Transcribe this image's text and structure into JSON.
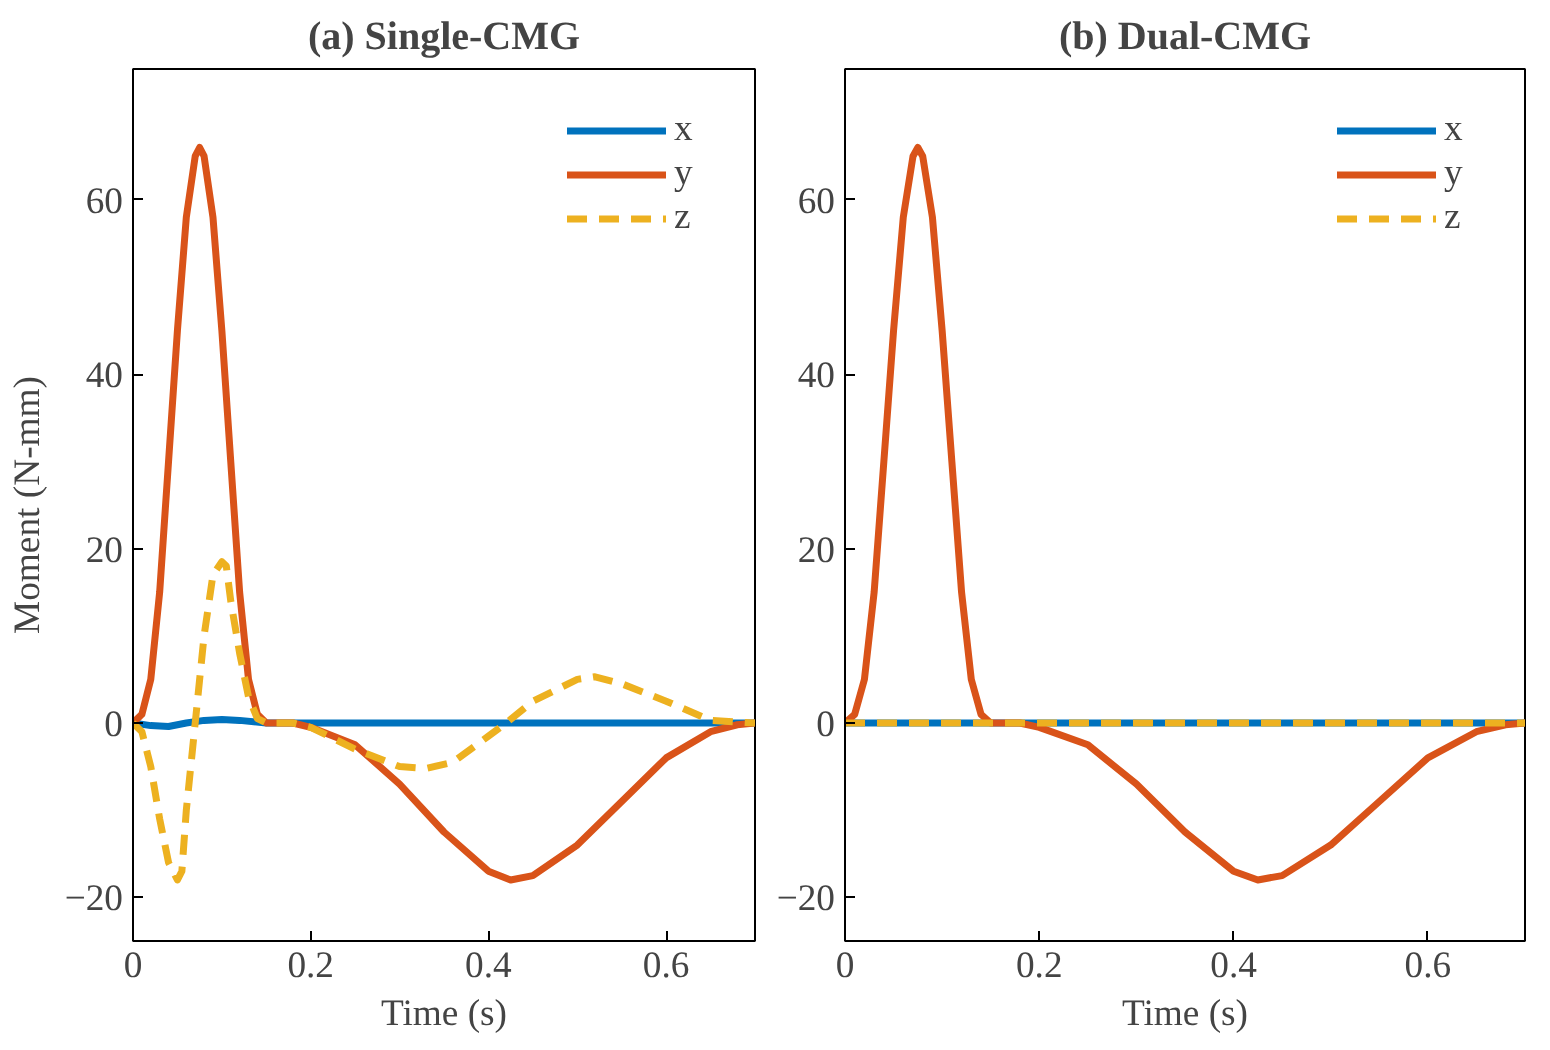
{
  "chart_data": [
    {
      "type": "line",
      "title": "(a) Single-CMG",
      "xlabel": "Time (s)",
      "ylabel": "Moment (N-mm)",
      "xlim": [
        0,
        0.7
      ],
      "ylim": [
        -25,
        75
      ],
      "xticks": [
        0,
        0.2,
        0.4,
        0.6
      ],
      "yticks": [
        -20,
        0,
        20,
        40,
        60
      ],
      "grid": false,
      "legend": "top right",
      "marker": "none",
      "series": [
        {
          "name": "x",
          "color": "#0072bd",
          "line_style": "solid",
          "x": [
            0,
            0.02,
            0.04,
            0.06,
            0.08,
            0.1,
            0.12,
            0.15,
            0.7
          ],
          "values": [
            0,
            -0.3,
            -0.4,
            0,
            0.3,
            0.4,
            0.3,
            0,
            0
          ]
        },
        {
          "name": "y",
          "color": "#d95319",
          "line_style": "solid",
          "x": [
            0,
            0.01,
            0.02,
            0.03,
            0.04,
            0.05,
            0.06,
            0.07,
            0.075,
            0.08,
            0.09,
            0.1,
            0.11,
            0.12,
            0.13,
            0.14,
            0.15,
            0.18,
            0.2,
            0.25,
            0.3,
            0.35,
            0.4,
            0.425,
            0.45,
            0.5,
            0.55,
            0.6,
            0.65,
            0.68,
            0.7
          ],
          "values": [
            0,
            1,
            5,
            15,
            30,
            45,
            58,
            65,
            66,
            65,
            58,
            45,
            30,
            15,
            5,
            1,
            0,
            0,
            -0.5,
            -2.5,
            -7,
            -12.5,
            -17,
            -18,
            -17.5,
            -14,
            -9,
            -4,
            -1,
            -0.2,
            0
          ]
        },
        {
          "name": "z",
          "color": "#edb120",
          "line_style": "dashed",
          "x": [
            0,
            0.01,
            0.02,
            0.03,
            0.04,
            0.05,
            0.055,
            0.06,
            0.07,
            0.08,
            0.09,
            0.1,
            0.105,
            0.11,
            0.12,
            0.13,
            0.14,
            0.15,
            0.18,
            0.2,
            0.25,
            0.3,
            0.33,
            0.36,
            0.4,
            0.42,
            0.45,
            0.5,
            0.52,
            0.55,
            0.6,
            0.65,
            0.7
          ],
          "values": [
            0,
            -1,
            -5,
            -11,
            -16,
            -18,
            -17,
            -10,
            0,
            10,
            17,
            18.5,
            18,
            14,
            8,
            3,
            0.5,
            0,
            0,
            -0.5,
            -3,
            -5,
            -5.2,
            -4.5,
            -1.5,
            0,
            2.5,
            5,
            5.3,
            4.5,
            2.5,
            0.3,
            0
          ]
        }
      ]
    },
    {
      "type": "line",
      "title": "(b) Dual-CMG",
      "xlabel": "Time (s)",
      "xlim": [
        0,
        0.7
      ],
      "ylim": [
        -25,
        75
      ],
      "xticks": [
        0,
        0.2,
        0.4,
        0.6
      ],
      "yticks": [
        -20,
        0,
        20,
        40,
        60
      ],
      "grid": false,
      "legend": "top right",
      "marker": "none",
      "series": [
        {
          "name": "x",
          "color": "#0072bd",
          "line_style": "solid",
          "x": [
            0,
            0.7
          ],
          "values": [
            0,
            0
          ]
        },
        {
          "name": "y",
          "color": "#d95319",
          "line_style": "solid",
          "x": [
            0,
            0.01,
            0.02,
            0.03,
            0.04,
            0.05,
            0.06,
            0.07,
            0.075,
            0.08,
            0.09,
            0.1,
            0.11,
            0.12,
            0.13,
            0.14,
            0.15,
            0.18,
            0.2,
            0.25,
            0.3,
            0.35,
            0.4,
            0.425,
            0.45,
            0.5,
            0.55,
            0.6,
            0.65,
            0.68,
            0.7
          ],
          "values": [
            0,
            1,
            5,
            15,
            30,
            45,
            58,
            65,
            66,
            65,
            58,
            45,
            30,
            15,
            5,
            1,
            0,
            0,
            -0.5,
            -2.5,
            -7,
            -12.5,
            -17,
            -18,
            -17.5,
            -14,
            -9,
            -4,
            -1,
            -0.2,
            0
          ]
        },
        {
          "name": "z",
          "color": "#edb120",
          "line_style": "dashed",
          "x": [
            0,
            0.7
          ],
          "values": [
            0,
            0
          ]
        }
      ]
    }
  ]
}
